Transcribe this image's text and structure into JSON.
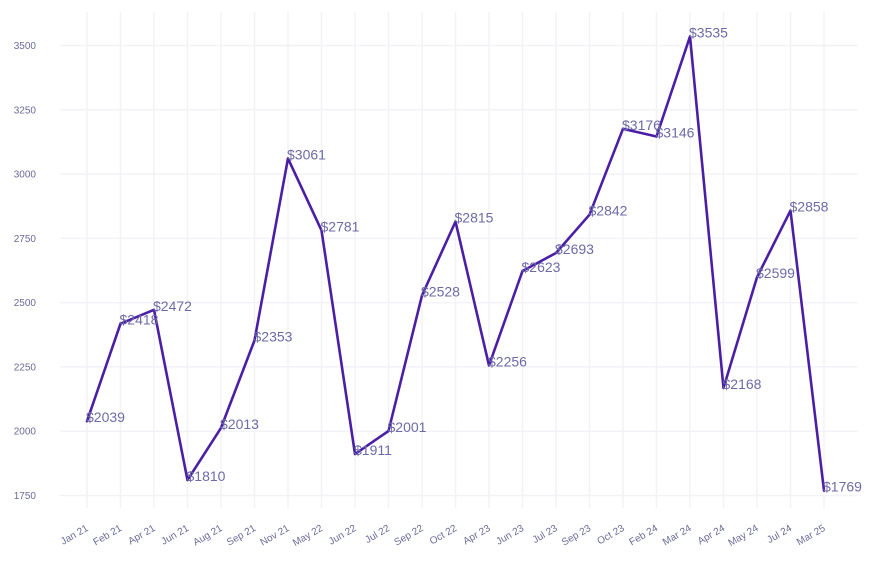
{
  "chart_data": {
    "type": "line",
    "title": "",
    "xlabel": "",
    "ylabel": "",
    "categories": [
      "Jan 21",
      "Feb 21",
      "Apr 21",
      "Jun 21",
      "Aug 21",
      "Sep 21",
      "Nov 21",
      "May 22",
      "Jun 22",
      "Jul 22",
      "Sep 22",
      "Oct 22",
      "Apr 23",
      "Jun 23",
      "Jul 23",
      "Sep 23",
      "Oct 23",
      "Feb 24",
      "Mar 24",
      "Apr 24",
      "May 24",
      "Jul 24",
      "Mar 25"
    ],
    "series": [
      {
        "values": [
          2039,
          2418,
          2472,
          1810,
          2013,
          2353,
          3061,
          2781,
          1911,
          2001,
          2528,
          2815,
          2256,
          2623,
          2693,
          2842,
          3176,
          3146,
          3535,
          2168,
          2599,
          2858,
          1769
        ],
        "labels": [
          "$2039",
          "$2418",
          "$2472",
          "$1810",
          "$2013",
          "$2353",
          "$3061",
          "$2781",
          "$1911",
          "$2001",
          "$2528",
          "$2815",
          "$2256",
          "$2623",
          "$2693",
          "$2842",
          "$3176",
          "$3146",
          "$3535",
          "$2168",
          "$2599",
          "$2858",
          "$1769"
        ]
      }
    ],
    "yticks": [
      1750,
      2000,
      2250,
      2500,
      2750,
      3000,
      3250,
      3500
    ],
    "ylim": [
      1690,
      3580
    ],
    "grid": true,
    "line_color": "#4a1fa6",
    "label_color": "#6e6aa6",
    "tick_color": "#6b6b9a",
    "grid_color": "#f3f3f7"
  }
}
